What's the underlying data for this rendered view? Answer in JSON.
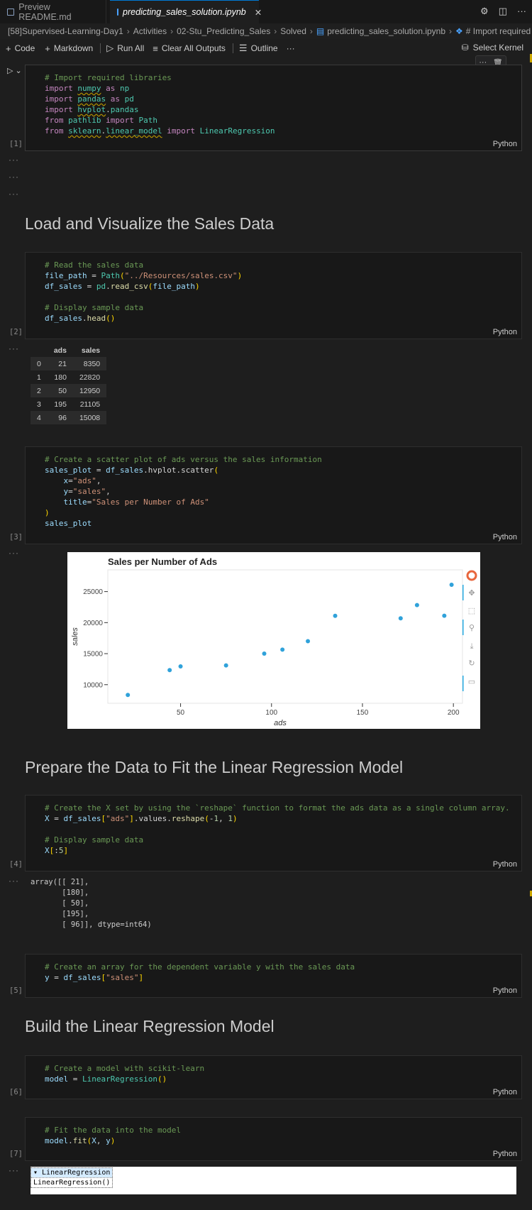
{
  "tabs": [
    {
      "label": "Preview README.md",
      "active": false
    },
    {
      "label": "predicting_sales_solution.ipynb",
      "active": true
    }
  ],
  "breadcrumb": [
    "[58]Supervised-Learning-Day1",
    "Activities",
    "02-Stu_Predicting_Sales",
    "Solved",
    "predicting_sales_solution.ipynb",
    "# Import required libra"
  ],
  "toolbar": {
    "code": "Code",
    "markdown": "Markdown",
    "run_all": "Run All",
    "clear_outputs": "Clear All Outputs",
    "outline": "Outline",
    "more": "···",
    "select_kernel": "Select Kernel"
  },
  "cells": {
    "c1": {
      "count": "[1]",
      "lang": "Python"
    },
    "c2": {
      "count": "[2]",
      "lang": "Python"
    },
    "c3": {
      "count": "[3]",
      "lang": "Python"
    },
    "c4": {
      "count": "[4]",
      "lang": "Python"
    },
    "c5": {
      "count": "[5]",
      "lang": "Python"
    },
    "c6": {
      "count": "[6]",
      "lang": "Python"
    },
    "c7": {
      "count": "[7]",
      "lang": "Python"
    }
  },
  "headings": {
    "h1": "Load and Visualize the Sales Data",
    "h2": "Prepare the Data to Fit the Linear Regression Model",
    "h3": "Build the Linear Regression Model"
  },
  "ellipsis": "···",
  "dataframe": {
    "columns": [
      "ads",
      "sales"
    ],
    "rows": [
      [
        "0",
        "21",
        "8350"
      ],
      [
        "1",
        "180",
        "22820"
      ],
      [
        "2",
        "50",
        "12950"
      ],
      [
        "3",
        "195",
        "21105"
      ],
      [
        "4",
        "96",
        "15008"
      ]
    ]
  },
  "array_output": [
    "array([[ 21],",
    "       [180],",
    "       [ 50],",
    "       [195],",
    "       [ 96]], dtype=int64)"
  ],
  "estimator": {
    "head": "▾ LinearRegression",
    "body": "LinearRegression()"
  },
  "chart_data": {
    "type": "scatter",
    "title": "Sales per Number of Ads",
    "xlabel": "ads",
    "ylabel": "sales",
    "x_ticks": [
      50,
      100,
      150,
      200
    ],
    "y_ticks": [
      10000,
      15000,
      20000,
      25000
    ],
    "xlim": [
      10,
      205
    ],
    "ylim": [
      7000,
      28500
    ],
    "color": "#30a2da",
    "x": [
      21,
      44,
      50,
      75,
      96,
      106,
      120,
      135,
      171,
      180,
      195,
      199
    ],
    "y": [
      8350,
      12350,
      12950,
      13100,
      15008,
      15650,
      17000,
      21100,
      20700,
      22820,
      21105,
      26100
    ]
  }
}
